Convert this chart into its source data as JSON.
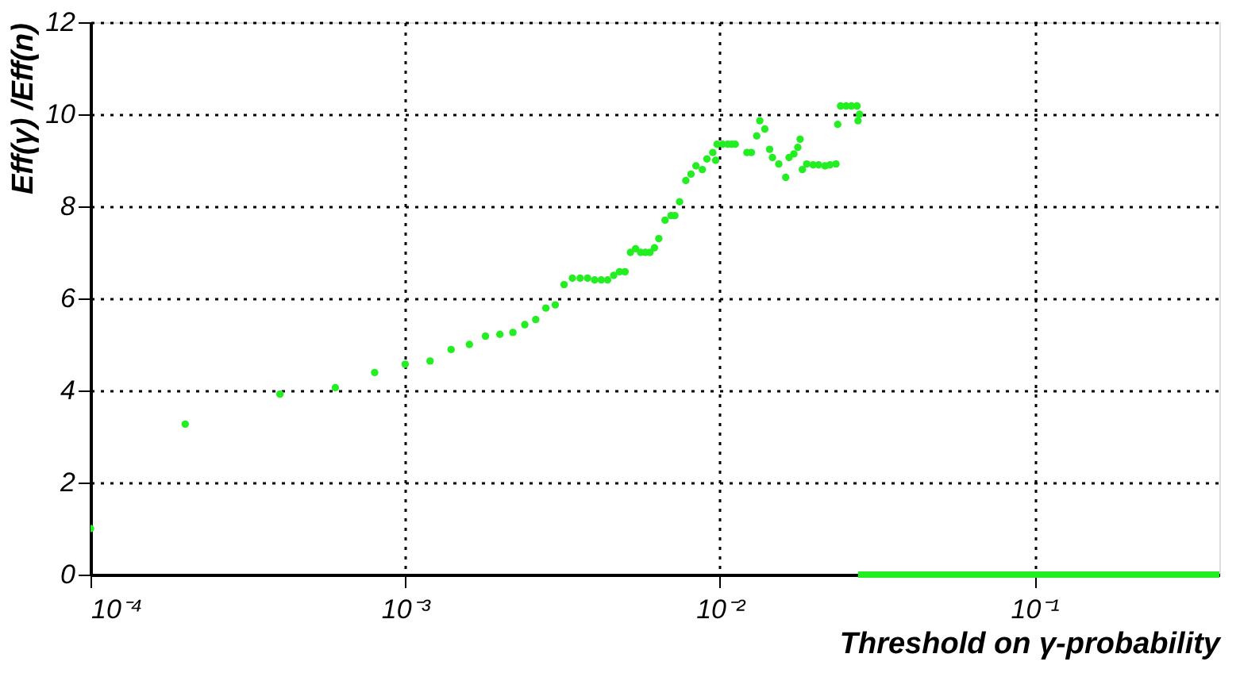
{
  "chart_data": {
    "type": "scatter",
    "xlabel": "Threshold on γ-probability",
    "ylabel": "Eff(γ) /Eff(n)",
    "log": "x",
    "xlim": [
      0.0001,
      0.387
    ],
    "xticks": [
      {
        "value": 0.0001,
        "label": "10⁻⁴"
      },
      {
        "value": 0.001,
        "label": "10⁻³"
      },
      {
        "value": 0.01,
        "label": "10⁻²"
      },
      {
        "value": 0.1,
        "label": "10⁻¹"
      }
    ],
    "ylim": [
      0,
      12
    ],
    "yticks": [
      0,
      2,
      4,
      6,
      8,
      10,
      12
    ],
    "grid": true,
    "marker": "circle",
    "series": [
      {
        "color": "#22ee22",
        "x": [
          0.0001,
          0.0002,
          0.0004,
          0.0006,
          0.0008,
          0.001,
          0.0012,
          0.0014,
          0.0016,
          0.0018,
          0.002,
          0.0022,
          0.0024,
          0.0026,
          0.0028,
          0.003,
          0.0032,
          0.0034,
          0.0036,
          0.0038,
          0.004,
          0.0042,
          0.0044,
          0.0046,
          0.0048,
          0.005,
          0.0052,
          0.0054,
          0.0056,
          0.0058,
          0.006,
          0.0062,
          0.0064,
          0.0067,
          0.007,
          0.0072,
          0.00745,
          0.0078,
          0.0081,
          0.0084,
          0.0088,
          0.0091,
          0.0095,
          0.0097,
          0.0098,
          0.0102,
          0.0106,
          0.0109,
          0.0112,
          0.0122,
          0.0126,
          0.0131,
          0.0134,
          0.0139,
          0.0144,
          0.0147,
          0.0154,
          0.0162,
          0.0166,
          0.0172,
          0.0177,
          0.018,
          0.0183,
          0.0189,
          0.0198,
          0.0206,
          0.0216,
          0.0224,
          0.0234,
          0.0237,
          0.0242,
          0.0252,
          0.0262,
          0.0273,
          0.0275,
          0.0278
        ],
        "values": [
          1.0,
          3.27,
          3.92,
          4.06,
          4.39,
          4.57,
          4.64,
          4.89,
          5.0,
          5.18,
          5.22,
          5.26,
          5.43,
          5.54,
          5.79,
          5.86,
          6.3,
          6.44,
          6.44,
          6.44,
          6.4,
          6.4,
          6.4,
          6.5,
          6.58,
          6.58,
          7.0,
          7.08,
          7.0,
          7.0,
          7.0,
          7.1,
          7.3,
          7.7,
          7.8,
          7.8,
          8.1,
          8.56,
          8.7,
          8.88,
          8.8,
          9.03,
          9.17,
          9.0,
          9.35,
          9.35,
          9.35,
          9.35,
          9.35,
          9.17,
          9.17,
          9.53,
          9.86,
          9.68,
          9.24,
          9.06,
          8.92,
          8.63,
          9.06,
          9.14,
          9.28,
          9.46,
          8.8,
          8.92,
          8.9,
          8.9,
          8.88,
          8.9,
          8.92,
          9.78,
          10.18,
          10.18,
          10.18,
          10.18,
          9.86,
          10.0
        ]
      },
      {
        "type": "line",
        "marker": "none",
        "color": "#22ee22",
        "x": [
          0.0275,
          0.387
        ],
        "values": [
          0,
          0
        ]
      }
    ]
  }
}
